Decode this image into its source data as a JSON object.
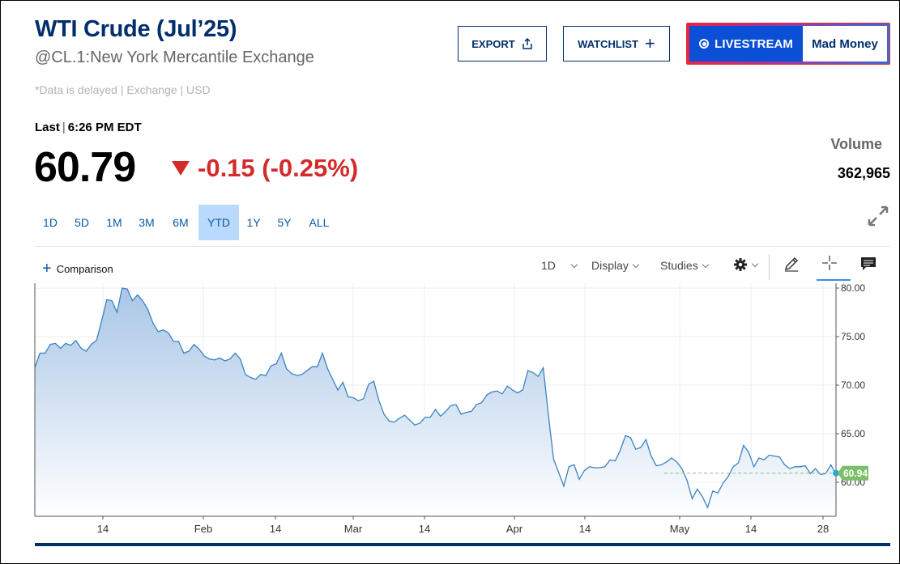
{
  "header": {
    "title": "WTI Crude (Jul’25)",
    "subtitle": "@CL.1:New York Mercantile Exchange",
    "delayed_note": "*Data is delayed | Exchange | USD"
  },
  "actions": {
    "export_label": "EXPORT",
    "watchlist_label": "WATCHLIST",
    "livestream_label": "LIVESTREAM",
    "show_label": "Mad Money"
  },
  "quote": {
    "last_label": "Last",
    "last_time": "6:26 PM EDT",
    "price": "60.79",
    "change": "-0.15 (-0.25%)",
    "direction": "down",
    "volume_label": "Volume",
    "volume": "362,965"
  },
  "ranges": [
    "1D",
    "5D",
    "1M",
    "3M",
    "6M",
    "YTD",
    "1Y",
    "5Y",
    "ALL"
  ],
  "active_range": "YTD",
  "chart_toolbar": {
    "comparison_label": "Comparison",
    "interval_label": "1D",
    "display_label": "Display",
    "studies_label": "Studies"
  },
  "colors": {
    "brand_navy": "#002f6c",
    "down_red": "#d32a2a",
    "link_blue": "#0a5aa8",
    "line": "#3b82c4",
    "last_price_badge": "#7cbf6b"
  },
  "icons": [
    "share-icon",
    "plus-icon",
    "live-icon",
    "expand-icon",
    "gear-icon",
    "pencil-icon",
    "crosshair-icon",
    "comment-icon"
  ],
  "chart_data": {
    "type": "area",
    "xlabel": "",
    "ylabel": "",
    "ylim": [
      56.5,
      80.5
    ],
    "yticks": [
      "80.00",
      "75.00",
      "70.00",
      "65.00",
      "60.00"
    ],
    "xtick_labels": [
      "14",
      "Feb",
      "14",
      "Mar",
      "14",
      "Apr",
      "14",
      "May",
      "14",
      "28"
    ],
    "last_value_label": "60.94",
    "last_value": 60.94,
    "grid": true,
    "series": [
      {
        "values": [
          71.8,
          73.3,
          73.3,
          74.2,
          74.3,
          73.8,
          74.3,
          74.1,
          74.6,
          73.8,
          73.5,
          74.2,
          74.6,
          76.6,
          78.8,
          78.7,
          77.5,
          80.0,
          79.9,
          78.7,
          79.3,
          78.7,
          77.8,
          76.4,
          75.5,
          75.7,
          75.4,
          74.5,
          74.5,
          73.3,
          73.5,
          74.2,
          73.7,
          73.0,
          72.7,
          72.6,
          72.8,
          72.5,
          72.7,
          73.3,
          72.7,
          71.1,
          70.8,
          70.6,
          71.1,
          71.0,
          72.0,
          72.2,
          73.3,
          71.7,
          71.2,
          71.0,
          71.1,
          71.5,
          71.9,
          71.9,
          73.3,
          71.7,
          70.6,
          69.5,
          70.3,
          68.8,
          68.7,
          68.4,
          68.6,
          70.1,
          70.4,
          68.4,
          67.0,
          66.3,
          66.2,
          66.6,
          66.9,
          66.4,
          65.9,
          66.1,
          66.7,
          66.7,
          67.5,
          66.8,
          67.3,
          67.9,
          68.0,
          67.0,
          67.2,
          67.3,
          68.0,
          68.2,
          69.0,
          69.3,
          69.4,
          69.1,
          69.9,
          69.5,
          69.2,
          69.5,
          71.5,
          71.3,
          70.9,
          71.8,
          66.9,
          62.4,
          61.0,
          59.6,
          61.6,
          61.8,
          60.3,
          61.2,
          61.6,
          61.5,
          61.5,
          61.6,
          62.3,
          62.2,
          63.3,
          64.8,
          64.6,
          63.4,
          63.6,
          64.4,
          62.7,
          61.7,
          61.8,
          62.1,
          62.5,
          62.1,
          61.4,
          60.2,
          58.3,
          59.3,
          58.5,
          57.4,
          59.1,
          58.9,
          59.9,
          60.6,
          61.6,
          62.0,
          63.8,
          63.1,
          61.6,
          62.5,
          62.3,
          62.8,
          62.7,
          62.6,
          61.8,
          61.4,
          61.6,
          61.6,
          61.7,
          60.9,
          61.4,
          60.8,
          60.9,
          61.8,
          60.8
        ]
      }
    ]
  }
}
